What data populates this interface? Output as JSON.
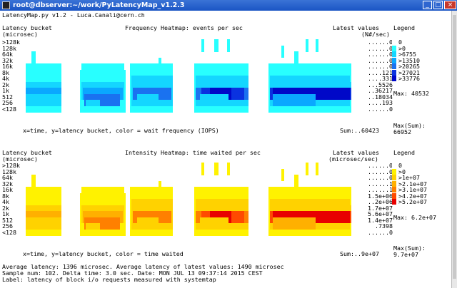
{
  "window": {
    "title": "root@dbserver:~/work/PyLatencyMap_v1.2.3",
    "buttons": {
      "minimize": "_",
      "maximize": "□",
      "close": "×"
    }
  },
  "terminal": {
    "header": "LatencyMap.py v1.2 - Luca.Canali@cern.ch",
    "footer": [
      "Average latency: 1396 microsec. Average latency of latest values: 1490 microsec",
      "Sample num: 102. Delta time: 3.0 sec. Date: MON JUL 13 09:37:14 2015 CEST",
      "Label: latency of block i/o requests measured with systemtap"
    ]
  },
  "buckets": [
    ">128k",
    "128k",
    "64k",
    "32k",
    "16k",
    "8k",
    "4k",
    "2k",
    "1k",
    "512",
    "256",
    "<128"
  ],
  "frequency_map": {
    "axis_title_1": "Latency bucket",
    "axis_title_2": "(microsec)",
    "title": "Frequency Heatmap: events per sec",
    "latest_title_1": "Latest values",
    "latest_title_2": "(N#/sec)",
    "latest_values": [
      "......0",
      "......0",
      "......0",
      "......0",
      "......0",
      "....121",
      "....331",
      "...5526",
      "..36217",
      "..18034",
      "....193",
      "......0"
    ],
    "x_caption": "x=time, y=latency bucket, color = wait frequency (IOPS)",
    "sum": "Sum:..60423",
    "legend_title": "Legend",
    "legend": [
      {
        "label": "0",
        "color": "#ffffff"
      },
      {
        "label": ">0",
        "color": "#28ffff"
      },
      {
        "label": ">6755",
        "color": "#14d6ff"
      },
      {
        "label": ">13510",
        "color": "#0aa8ff"
      },
      {
        "label": ">20265",
        "color": "#1a72f0"
      },
      {
        "label": ">27021",
        "color": "#0a32e0"
      },
      {
        "label": ">33776",
        "color": "#0008c8"
      }
    ],
    "max": "Max: 40532",
    "max_sum_label": "Max(Sum):",
    "max_sum_value": "66952"
  },
  "intensity_map": {
    "axis_title_1": "Latency bucket",
    "axis_title_2": "(microsec)",
    "title": "Intensity Heatmap: time waited per sec",
    "latest_title_1": "Latest values",
    "latest_title_2": "(microsec/sec)",
    "latest_values": [
      "......0",
      "......0",
      "......0",
      "......1",
      "......1",
      "1.5e+06",
      "..2e+06",
      "1.7e+07",
      "5.6e+07",
      "1.4e+07",
      ".7398",
      "......0"
    ],
    "x_caption": "x=time, y=latency bucket, color = time waited",
    "sum": "Sum:..9e+07",
    "legend_title": "Legend",
    "legend": [
      {
        "label": "0",
        "color": "#ffffff"
      },
      {
        "label": ">0",
        "color": "#fff200"
      },
      {
        "label": ">1e+07",
        "color": "#ffd200"
      },
      {
        "label": ">2.1e+07",
        "color": "#ffb000"
      },
      {
        "label": ">3.1e+07",
        "color": "#ff8000"
      },
      {
        "label": ">4.2e+07",
        "color": "#ff4a00"
      },
      {
        "label": ">5.2e+07",
        "color": "#e80000"
      }
    ],
    "max": "Max: 6.2e+07",
    "max_sum_label": "Max(Sum):",
    "max_sum_value": "9.7e+07"
  }
}
